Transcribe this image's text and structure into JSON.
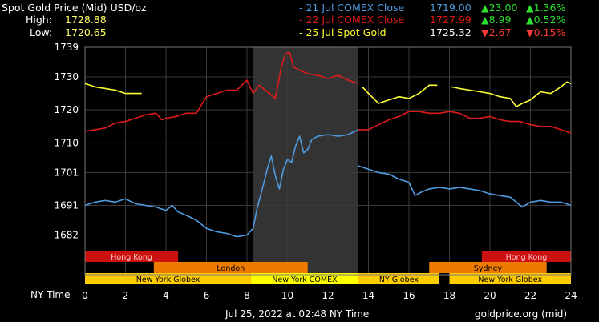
{
  "header": {
    "title": "Spot Gold Price (Mid) USD/oz",
    "high_label": "High:",
    "high_value": "1728.88",
    "low_label": "Low:",
    "low_value": "1720.65"
  },
  "legend": [
    {
      "label": "- 21 Jul COMEX Close",
      "price": "1719.00",
      "change": "▲23.00",
      "pct": "▲1.36%",
      "color": "#4f9be0",
      "change_color": "#2fe02f"
    },
    {
      "label": "- 22 Jul COMEX Close",
      "price": "1727.99",
      "change": "▲8.99",
      "pct": "▲0.52%",
      "color": "#e01a1a",
      "change_color": "#2fe02f"
    },
    {
      "label": "- 25 Jul Spot Gold",
      "price": "1725.32",
      "change": "▼2.67",
      "pct": "▼0.15%",
      "color": "#ffff33",
      "change_color": "#ff3a3a"
    }
  ],
  "footer": {
    "timestamp": "Jul 25, 2022 at 02:48 NY Time",
    "source": "goldprice.org (mid)",
    "x_axis_title": "NY Time"
  },
  "colors": {
    "grid": "#3a3a3a",
    "plot_border": "#777777",
    "shaded_session": "#333333",
    "market_red": "#cc1111",
    "market_orange": "#ee7a00",
    "market_yellow": "#ffcc00"
  },
  "markets": [
    {
      "name": "Hong Kong",
      "start": 0,
      "end": 4.6,
      "row": 0,
      "color": "#cc1111"
    },
    {
      "name": "Hong Kong",
      "start": 19.6,
      "end": 24,
      "row": 0,
      "color": "#cc1111"
    },
    {
      "name": "London",
      "start": 3.4,
      "end": 11,
      "row": 1,
      "color": "#ee7a00"
    },
    {
      "name": "Sydney",
      "start": 17,
      "end": 22.8,
      "row": 1,
      "color": "#ee7a00"
    },
    {
      "name": "New York Globex",
      "start": 0,
      "end": 8.2,
      "row": 2,
      "color": "#ffcc00"
    },
    {
      "name": "New York COMEX",
      "start": 8.2,
      "end": 13.5,
      "row": 2,
      "color": "#ffff00"
    },
    {
      "name": "NY Globex",
      "start": 13.5,
      "end": 17.5,
      "row": 2,
      "color": "#ffcc00"
    },
    {
      "name": "New York Globex",
      "start": 18,
      "end": 24,
      "row": 2,
      "color": "#ffcc00"
    }
  ],
  "chart_data": {
    "type": "line",
    "title": "Spot Gold Price (Mid) USD/oz",
    "xlabel": "NY Time",
    "ylabel": "",
    "xlim": [
      0,
      24
    ],
    "ylim": [
      1678,
      1739
    ],
    "x_ticks": [
      0,
      2,
      4,
      6,
      8,
      10,
      12,
      14,
      16,
      18,
      20,
      22,
      24
    ],
    "y_ticks": [
      1682,
      1691,
      1701,
      1710,
      1720,
      1730,
      1739
    ],
    "shaded_x": [
      8.3,
      13.5
    ],
    "grid": true,
    "series": [
      {
        "name": "21 Jul COMEX Close",
        "color": "#4f9be0",
        "segments": [
          [
            [
              0,
              1691
            ],
            [
              0.5,
              1692
            ],
            [
              1,
              1692.5
            ],
            [
              1.5,
              1692
            ],
            [
              2,
              1693
            ],
            [
              2.5,
              1691.5
            ],
            [
              3,
              1691
            ],
            [
              3.5,
              1690.5
            ],
            [
              4,
              1689.5
            ],
            [
              4.3,
              1691
            ],
            [
              4.6,
              1689
            ],
            [
              5,
              1688
            ],
            [
              5.5,
              1686.5
            ],
            [
              6,
              1684
            ],
            [
              6.5,
              1683
            ],
            [
              7,
              1682.5
            ],
            [
              7.5,
              1681.5
            ],
            [
              8,
              1682
            ],
            [
              8.3,
              1684
            ],
            [
              8.5,
              1690
            ],
            [
              8.8,
              1697
            ],
            [
              9,
              1702
            ],
            [
              9.2,
              1706
            ],
            [
              9.4,
              1700
            ],
            [
              9.6,
              1696
            ],
            [
              9.8,
              1702
            ],
            [
              10,
              1705
            ],
            [
              10.2,
              1704
            ],
            [
              10.4,
              1709
            ],
            [
              10.6,
              1712
            ],
            [
              10.8,
              1707
            ],
            [
              11,
              1708
            ],
            [
              11.2,
              1711
            ],
            [
              11.5,
              1712
            ],
            [
              12,
              1712.5
            ],
            [
              12.5,
              1712
            ],
            [
              13,
              1712.5
            ],
            [
              13.5,
              1714
            ]
          ],
          [
            [
              13.5,
              1703
            ],
            [
              14,
              1702
            ],
            [
              14.5,
              1701
            ],
            [
              15,
              1700.5
            ],
            [
              15.5,
              1699
            ],
            [
              16,
              1698
            ],
            [
              16.3,
              1694
            ],
            [
              16.6,
              1695
            ],
            [
              17,
              1696
            ],
            [
              17.5,
              1696.5
            ],
            [
              18,
              1696
            ],
            [
              18.5,
              1696.5
            ],
            [
              19,
              1696
            ],
            [
              19.5,
              1695.5
            ],
            [
              20,
              1694.5
            ],
            [
              20.5,
              1694
            ],
            [
              21,
              1693.5
            ],
            [
              21.3,
              1692
            ],
            [
              21.6,
              1690.5
            ],
            [
              22,
              1692
            ],
            [
              22.5,
              1692.5
            ],
            [
              23,
              1692
            ],
            [
              23.5,
              1692
            ],
            [
              24,
              1691
            ]
          ]
        ]
      },
      {
        "name": "22 Jul COMEX Close",
        "color": "#e01a1a",
        "segments": [
          [
            [
              0,
              1713.5
            ],
            [
              0.5,
              1714
            ],
            [
              1,
              1714.5
            ],
            [
              1.5,
              1716
            ],
            [
              2,
              1716.5
            ],
            [
              2.5,
              1717.5
            ],
            [
              3,
              1718.5
            ],
            [
              3.5,
              1719
            ],
            [
              3.8,
              1717
            ],
            [
              4,
              1717.5
            ],
            [
              4.5,
              1718
            ],
            [
              5,
              1719
            ],
            [
              5.5,
              1719
            ],
            [
              5.8,
              1722
            ],
            [
              6,
              1724
            ],
            [
              6.5,
              1725
            ],
            [
              7,
              1726
            ],
            [
              7.5,
              1726
            ],
            [
              8,
              1729
            ],
            [
              8.3,
              1725
            ],
            [
              8.6,
              1727.5
            ],
            [
              9,
              1725.5
            ],
            [
              9.4,
              1723.5
            ],
            [
              9.7,
              1733
            ],
            [
              9.9,
              1737
            ],
            [
              10.1,
              1737.5
            ],
            [
              10.3,
              1733
            ],
            [
              10.6,
              1732
            ],
            [
              11,
              1731
            ],
            [
              11.5,
              1730.5
            ],
            [
              12,
              1729.5
            ],
            [
              12.5,
              1730.5
            ],
            [
              13,
              1729
            ],
            [
              13.5,
              1728
            ]
          ],
          [
            [
              13.5,
              1714
            ],
            [
              14,
              1714
            ],
            [
              14.5,
              1715.5
            ],
            [
              15,
              1717
            ],
            [
              15.5,
              1718
            ],
            [
              16,
              1719.5
            ],
            [
              16.5,
              1719.5
            ],
            [
              17,
              1719
            ],
            [
              17.5,
              1719
            ],
            [
              18,
              1719.5
            ],
            [
              18.5,
              1719
            ],
            [
              19,
              1717.5
            ],
            [
              19.5,
              1717.5
            ],
            [
              20,
              1718
            ],
            [
              20.5,
              1717
            ],
            [
              21,
              1716.5
            ],
            [
              21.5,
              1716.5
            ],
            [
              22,
              1715.5
            ],
            [
              22.5,
              1715
            ],
            [
              23,
              1715
            ],
            [
              23.5,
              1714
            ],
            [
              24,
              1713
            ]
          ]
        ]
      },
      {
        "name": "25 Jul Spot Gold",
        "color": "#ffff33",
        "segments": [
          [
            [
              0,
              1728
            ],
            [
              0.5,
              1727
            ],
            [
              1,
              1726.5
            ],
            [
              1.5,
              1726
            ],
            [
              2,
              1725
            ],
            [
              2.5,
              1725
            ],
            [
              2.8,
              1725
            ]
          ],
          [
            [
              13.7,
              1727
            ],
            [
              14,
              1725
            ],
            [
              14.5,
              1722
            ],
            [
              15,
              1723
            ],
            [
              15.5,
              1724
            ],
            [
              16,
              1723.5
            ],
            [
              16.5,
              1725
            ],
            [
              17,
              1727.5
            ],
            [
              17.4,
              1727.5
            ]
          ],
          [
            [
              18.1,
              1727
            ],
            [
              18.5,
              1726.5
            ],
            [
              19,
              1726
            ],
            [
              19.5,
              1725.5
            ],
            [
              20,
              1725
            ],
            [
              20.5,
              1724
            ],
            [
              21,
              1723.5
            ],
            [
              21.3,
              1721
            ],
            [
              21.6,
              1722
            ],
            [
              22,
              1723
            ],
            [
              22.5,
              1725.5
            ],
            [
              23,
              1725
            ],
            [
              23.5,
              1727
            ],
            [
              23.8,
              1728.5
            ],
            [
              24,
              1728
            ]
          ]
        ]
      }
    ]
  }
}
